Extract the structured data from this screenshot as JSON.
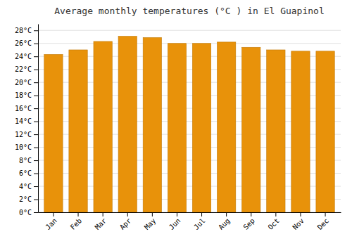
{
  "chart_data": {
    "type": "bar",
    "title": "Average monthly temperatures (°C ) in El Guapinol",
    "categories": [
      "Jan",
      "Feb",
      "Mar",
      "Apr",
      "May",
      "Jun",
      "Jul",
      "Aug",
      "Sep",
      "Oct",
      "Nov",
      "Dec"
    ],
    "values": [
      24.3,
      25.0,
      26.3,
      27.1,
      26.9,
      26.0,
      26.0,
      26.2,
      25.4,
      25.0,
      24.8,
      24.8
    ],
    "color": "#E8920A",
    "ylim": [
      0,
      29
    ],
    "yticks": [
      {
        "value": 0,
        "label": "0°C"
      },
      {
        "value": 2,
        "label": "2°C"
      },
      {
        "value": 4,
        "label": "4°C"
      },
      {
        "value": 6,
        "label": "6°C"
      },
      {
        "value": 8,
        "label": "8°C"
      },
      {
        "value": 10,
        "label": "10°C"
      },
      {
        "value": 12,
        "label": "12°C"
      },
      {
        "value": 14,
        "label": "14°C"
      },
      {
        "value": 16,
        "label": "16°C"
      },
      {
        "value": 18,
        "label": "18°C"
      },
      {
        "value": 20,
        "label": "20°C"
      },
      {
        "value": 22,
        "label": "22°C"
      },
      {
        "value": 24,
        "label": "24°C"
      },
      {
        "value": 26,
        "label": "26°C"
      },
      {
        "value": 28,
        "label": "28°C"
      }
    ],
    "grid": true
  }
}
